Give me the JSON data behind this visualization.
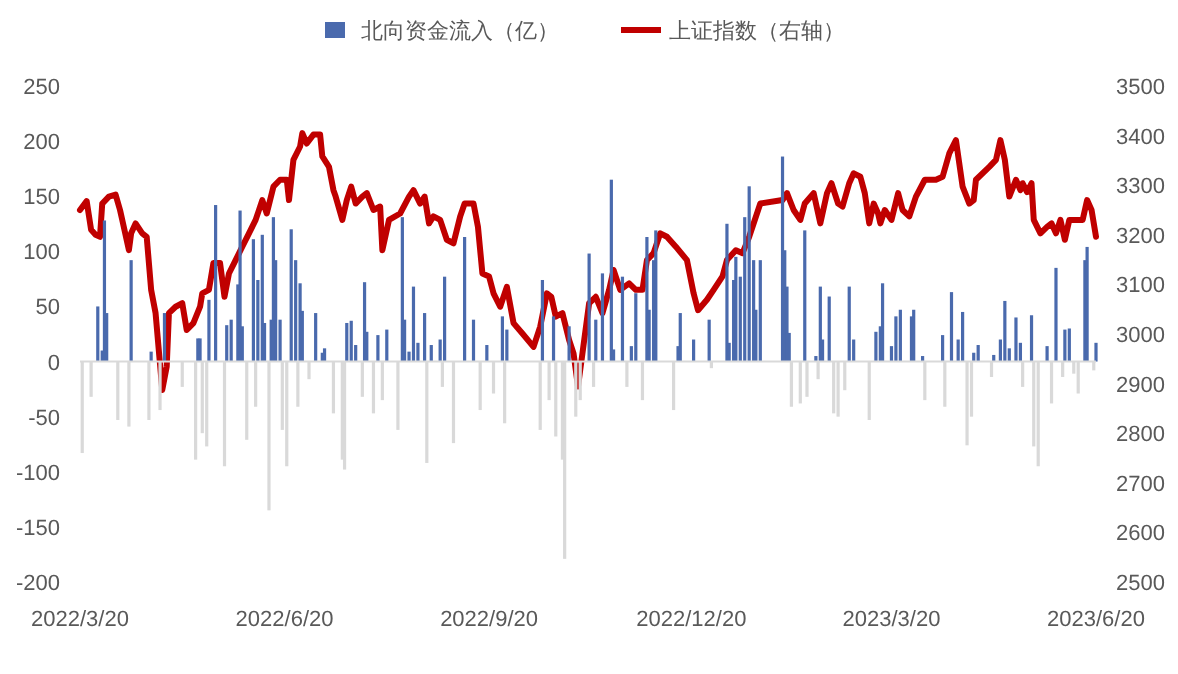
{
  "chart_data": {
    "type": "bar",
    "legend": "top",
    "xlim": [
      "2022-03-20",
      "2023-06-20"
    ],
    "xticks": [
      {
        "value": "2022-03-20",
        "label": "2022/3/20"
      },
      {
        "value": "2022-06-20",
        "label": "2022/6/20"
      },
      {
        "value": "2022-09-20",
        "label": "2022/9/20"
      },
      {
        "value": "2022-12-20",
        "label": "2022/12/20"
      },
      {
        "value": "2023-03-20",
        "label": "2023/3/20"
      },
      {
        "value": "2023-06-20",
        "label": "2023/6/20"
      }
    ],
    "ylim": [
      -200,
      250
    ],
    "yticks": [
      -200,
      -150,
      -100,
      -50,
      0,
      50,
      100,
      150,
      200,
      250
    ],
    "y2lim": [
      2500,
      3500
    ],
    "y2ticks": [
      2500,
      2600,
      2700,
      2800,
      2900,
      3000,
      3100,
      3200,
      3300,
      3400,
      3500
    ],
    "series": [
      {
        "name": "北向资金流入（亿）",
        "type": "bar",
        "color": "#4a6aad",
        "x": [
          "2022-03-21",
          "2022-03-25",
          "2022-03-28",
          "2022-03-30",
          "2022-03-31",
          "2022-04-01",
          "2022-04-06",
          "2022-04-11",
          "2022-04-12",
          "2022-04-20",
          "2022-04-21",
          "2022-04-25",
          "2022-04-27",
          "2022-05-05",
          "2022-05-11",
          "2022-05-12",
          "2022-05-13",
          "2022-05-14",
          "2022-05-16",
          "2022-05-17",
          "2022-05-20",
          "2022-05-24",
          "2022-05-25",
          "2022-05-27",
          "2022-05-30",
          "2022-05-31",
          "2022-06-01",
          "2022-06-03",
          "2022-06-06",
          "2022-06-07",
          "2022-06-08",
          "2022-06-10",
          "2022-06-11",
          "2022-06-13",
          "2022-06-14",
          "2022-06-15",
          "2022-06-16",
          "2022-06-18",
          "2022-06-19",
          "2022-06-21",
          "2022-06-23",
          "2022-06-25",
          "2022-06-26",
          "2022-06-27",
          "2022-06-28",
          "2022-07-01",
          "2022-07-04",
          "2022-07-07",
          "2022-07-08",
          "2022-07-12",
          "2022-07-16",
          "2022-07-17",
          "2022-07-18",
          "2022-07-20",
          "2022-07-22",
          "2022-07-25",
          "2022-07-26",
          "2022-07-27",
          "2022-07-30",
          "2022-08-01",
          "2022-08-03",
          "2022-08-05",
          "2022-08-10",
          "2022-08-12",
          "2022-08-13",
          "2022-08-15",
          "2022-08-17",
          "2022-08-19",
          "2022-08-22",
          "2022-08-23",
          "2022-08-25",
          "2022-08-29",
          "2022-08-30",
          "2022-08-31",
          "2022-09-04",
          "2022-09-09",
          "2022-09-13",
          "2022-09-16",
          "2022-09-19",
          "2022-09-22",
          "2022-09-26",
          "2022-09-27",
          "2022-09-28",
          "2022-10-13",
          "2022-10-14",
          "2022-10-17",
          "2022-10-19",
          "2022-10-20",
          "2022-10-23",
          "2022-10-24",
          "2022-10-26",
          "2022-10-29",
          "2022-10-31",
          "2022-11-04",
          "2022-11-06",
          "2022-11-07",
          "2022-11-10",
          "2022-11-14",
          "2022-11-15",
          "2022-11-19",
          "2022-11-21",
          "2022-11-23",
          "2022-11-25",
          "2022-11-28",
          "2022-11-30",
          "2022-12-01",
          "2022-12-03",
          "2022-12-04",
          "2022-12-12",
          "2022-12-14",
          "2022-12-15",
          "2022-12-21",
          "2022-12-28",
          "2022-12-29",
          "2023-01-05",
          "2023-01-06",
          "2023-01-08",
          "2023-01-09",
          "2023-01-11",
          "2023-01-13",
          "2023-01-15",
          "2023-01-17",
          "2023-01-18",
          "2023-01-20",
          "2023-01-30",
          "2023-01-31",
          "2023-02-01",
          "2023-02-02",
          "2023-02-03",
          "2023-02-07",
          "2023-02-09",
          "2023-02-10",
          "2023-02-14",
          "2023-02-15",
          "2023-02-16",
          "2023-02-17",
          "2023-02-20",
          "2023-02-22",
          "2023-02-24",
          "2023-02-27",
          "2023-03-01",
          "2023-03-03",
          "2023-03-10",
          "2023-03-13",
          "2023-03-15",
          "2023-03-16",
          "2023-03-20",
          "2023-03-22",
          "2023-03-24",
          "2023-03-29",
          "2023-03-30",
          "2023-04-03",
          "2023-04-04",
          "2023-04-12",
          "2023-04-13",
          "2023-04-16",
          "2023-04-19",
          "2023-04-21",
          "2023-04-23",
          "2023-04-25",
          "2023-04-26",
          "2023-04-28",
          "2023-05-04",
          "2023-05-05",
          "2023-05-08",
          "2023-05-10",
          "2023-05-12",
          "2023-05-15",
          "2023-05-17",
          "2023-05-18",
          "2023-05-22",
          "2023-05-23",
          "2023-05-25",
          "2023-05-29",
          "2023-05-31",
          "2023-06-02",
          "2023-06-05",
          "2023-06-06",
          "2023-06-08",
          "2023-06-10",
          "2023-06-12",
          "2023-06-15",
          "2023-06-16",
          "2023-06-19",
          "2023-06-20"
        ],
        "values": [
          -83,
          -32,
          50,
          10,
          128,
          44,
          -53,
          -59,
          92,
          -53,
          9,
          -44,
          44,
          -23,
          -89,
          21,
          21,
          -65,
          -77,
          56,
          142,
          -95,
          33,
          38,
          70,
          137,
          32,
          -71,
          111,
          -41,
          74,
          115,
          35,
          -135,
          38,
          131,
          92,
          38,
          -62,
          -95,
          120,
          92,
          -41,
          71,
          46,
          -16,
          44,
          8,
          12,
          -47,
          -89,
          -98,
          35,
          37,
          15,
          -32,
          72,
          27,
          -47,
          24,
          -35,
          29,
          -62,
          131,
          38,
          9,
          68,
          17,
          44,
          -92,
          15,
          20,
          -23,
          77,
          -74,
          113,
          38,
          -44,
          15,
          -29,
          41,
          -56,
          29,
          -62,
          74,
          -35,
          41,
          -68,
          -89,
          -179,
          32,
          -50,
          -35,
          98,
          -23,
          38,
          80,
          165,
          11,
          77,
          -23,
          14,
          62,
          -35,
          113,
          47,
          92,
          119,
          -44,
          14,
          44,
          20,
          38,
          -6,
          125,
          17,
          74,
          95,
          77,
          131,
          159,
          92,
          47,
          92,
          186,
          101,
          68,
          26,
          -41,
          -38,
          119,
          -32,
          5,
          -16,
          68,
          20,
          59,
          -47,
          -50,
          -26,
          68,
          20,
          -53,
          27,
          32,
          71,
          14,
          41,
          47,
          41,
          47,
          5,
          -35,
          24,
          -41,
          63,
          20,
          45,
          -76,
          -50,
          8,
          15,
          -14,
          6,
          20,
          55,
          12,
          40,
          17,
          -23,
          42,
          -77,
          -95,
          14,
          -38,
          85,
          -14,
          29,
          30,
          -11,
          -29,
          92,
          104,
          -8,
          17
        ],
        "colors": [
          "#d9d9d9",
          "#d9d9d9",
          "#4a6aad",
          "#4a6aad",
          "#4a6aad",
          "#4a6aad",
          "#d9d9d9",
          "#d9d9d9",
          "#4a6aad",
          "#d9d9d9",
          "#4a6aad",
          "#d9d9d9",
          "#4a6aad",
          "#d9d9d9",
          "#d9d9d9",
          "#4a6aad",
          "#4a6aad",
          "#d9d9d9",
          "#d9d9d9",
          "#4a6aad",
          "#4a6aad",
          "#d9d9d9",
          "#4a6aad",
          "#4a6aad",
          "#4a6aad",
          "#4a6aad",
          "#4a6aad",
          "#d9d9d9",
          "#4a6aad",
          "#d9d9d9",
          "#4a6aad",
          "#4a6aad",
          "#4a6aad",
          "#d9d9d9",
          "#4a6aad",
          "#4a6aad",
          "#4a6aad",
          "#4a6aad",
          "#d9d9d9",
          "#d9d9d9",
          "#4a6aad",
          "#4a6aad",
          "#d9d9d9",
          "#4a6aad",
          "#4a6aad",
          "#d9d9d9",
          "#4a6aad",
          "#4a6aad",
          "#4a6aad",
          "#d9d9d9",
          "#d9d9d9",
          "#d9d9d9",
          "#4a6aad",
          "#4a6aad",
          "#4a6aad",
          "#d9d9d9",
          "#4a6aad",
          "#4a6aad",
          "#d9d9d9",
          "#4a6aad",
          "#d9d9d9",
          "#4a6aad",
          "#d9d9d9",
          "#4a6aad",
          "#4a6aad",
          "#4a6aad",
          "#4a6aad",
          "#4a6aad",
          "#4a6aad",
          "#d9d9d9",
          "#4a6aad",
          "#4a6aad",
          "#d9d9d9",
          "#4a6aad",
          "#d9d9d9",
          "#4a6aad",
          "#4a6aad",
          "#d9d9d9",
          "#4a6aad",
          "#d9d9d9",
          "#4a6aad",
          "#d9d9d9",
          "#4a6aad",
          "#d9d9d9",
          "#4a6aad",
          "#d9d9d9",
          "#4a6aad",
          "#d9d9d9",
          "#d9d9d9",
          "#d9d9d9",
          "#4a6aad",
          "#d9d9d9",
          "#d9d9d9",
          "#4a6aad",
          "#d9d9d9",
          "#4a6aad",
          "#4a6aad",
          "#4a6aad",
          "#4a6aad",
          "#4a6aad",
          "#d9d9d9",
          "#4a6aad",
          "#4a6aad",
          "#d9d9d9",
          "#4a6aad",
          "#4a6aad",
          "#4a6aad",
          "#4a6aad",
          "#d9d9d9",
          "#4a6aad",
          "#4a6aad",
          "#4a6aad",
          "#4a6aad",
          "#d9d9d9",
          "#4a6aad",
          "#4a6aad",
          "#4a6aad",
          "#4a6aad",
          "#4a6aad",
          "#4a6aad",
          "#4a6aad",
          "#4a6aad",
          "#4a6aad",
          "#4a6aad",
          "#4a6aad",
          "#4a6aad",
          "#4a6aad",
          "#4a6aad",
          "#d9d9d9",
          "#d9d9d9",
          "#4a6aad",
          "#d9d9d9",
          "#4a6aad",
          "#d9d9d9",
          "#4a6aad",
          "#4a6aad",
          "#4a6aad",
          "#d9d9d9",
          "#d9d9d9",
          "#d9d9d9",
          "#4a6aad",
          "#4a6aad",
          "#d9d9d9",
          "#4a6aad",
          "#4a6aad",
          "#4a6aad",
          "#4a6aad",
          "#4a6aad",
          "#4a6aad",
          "#4a6aad",
          "#4a6aad",
          "#4a6aad",
          "#d9d9d9",
          "#4a6aad",
          "#d9d9d9",
          "#4a6aad",
          "#4a6aad",
          "#4a6aad",
          "#d9d9d9",
          "#d9d9d9",
          "#4a6aad",
          "#4a6aad",
          "#d9d9d9",
          "#4a6aad",
          "#4a6aad",
          "#4a6aad",
          "#4a6aad",
          "#4a6aad",
          "#4a6aad",
          "#d9d9d9",
          "#4a6aad",
          "#d9d9d9",
          "#d9d9d9",
          "#4a6aad",
          "#d9d9d9",
          "#4a6aad",
          "#d9d9d9",
          "#4a6aad",
          "#4a6aad",
          "#d9d9d9",
          "#d9d9d9",
          "#4a6aad",
          "#4a6aad",
          "#d9d9d9",
          "#4a6aad"
        ]
      },
      {
        "name": "上证指数（右轴）",
        "type": "line",
        "axis": "y2",
        "color": "#c00000",
        "x": [
          "2022-03-20",
          "2022-03-23",
          "2022-03-25",
          "2022-03-27",
          "2022-03-29",
          "2022-03-30",
          "2022-04-02",
          "2022-04-05",
          "2022-04-07",
          "2022-04-08",
          "2022-04-11",
          "2022-04-12",
          "2022-04-14",
          "2022-04-17",
          "2022-04-19",
          "2022-04-21",
          "2022-04-23",
          "2022-04-26",
          "2022-04-28",
          "2022-04-29",
          "2022-05-02",
          "2022-05-05",
          "2022-05-07",
          "2022-05-10",
          "2022-05-13",
          "2022-05-14",
          "2022-05-17",
          "2022-05-19",
          "2022-05-22",
          "2022-05-24",
          "2022-05-26",
          "2022-05-29",
          "2022-06-01",
          "2022-06-04",
          "2022-06-07",
          "2022-06-10",
          "2022-06-12",
          "2022-06-15",
          "2022-06-18",
          "2022-06-21",
          "2022-06-22",
          "2022-06-24",
          "2022-06-27",
          "2022-06-28",
          "2022-06-30",
          "2022-07-03",
          "2022-07-06",
          "2022-07-07",
          "2022-07-10",
          "2022-07-12",
          "2022-07-13",
          "2022-07-16",
          "2022-07-18",
          "2022-07-20",
          "2022-07-22",
          "2022-07-25",
          "2022-07-27",
          "2022-07-30",
          "2022-08-02",
          "2022-08-03",
          "2022-08-06",
          "2022-08-11",
          "2022-08-15",
          "2022-08-17",
          "2022-08-20",
          "2022-08-22",
          "2022-08-24",
          "2022-08-26",
          "2022-08-29",
          "2022-09-01",
          "2022-09-04",
          "2022-09-07",
          "2022-09-09",
          "2022-09-13",
          "2022-09-15",
          "2022-09-17",
          "2022-09-20",
          "2022-09-22",
          "2022-09-25",
          "2022-09-28",
          "2022-10-01",
          "2022-10-05",
          "2022-10-10",
          "2022-10-13",
          "2022-10-16",
          "2022-10-18",
          "2022-10-20",
          "2022-10-23",
          "2022-10-26",
          "2022-10-28",
          "2022-10-30",
          "2022-11-01",
          "2022-11-04",
          "2022-11-07",
          "2022-11-10",
          "2022-11-13",
          "2022-11-15",
          "2022-11-18",
          "2022-11-22",
          "2022-11-25",
          "2022-11-28",
          "2022-11-30",
          "2022-12-03",
          "2022-12-06",
          "2022-12-09",
          "2022-12-13",
          "2022-12-18",
          "2022-12-21",
          "2022-12-23",
          "2022-12-27",
          "2022-12-30",
          "2023-01-03",
          "2023-01-05",
          "2023-01-09",
          "2023-01-12",
          "2023-01-15",
          "2023-01-20",
          "2023-01-30",
          "2023-02-01",
          "2023-02-04",
          "2023-02-07",
          "2023-02-09",
          "2023-02-13",
          "2023-02-16",
          "2023-02-19",
          "2023-02-21",
          "2023-02-24",
          "2023-02-26",
          "2023-03-01",
          "2023-03-03",
          "2023-03-06",
          "2023-03-08",
          "2023-03-10",
          "2023-03-12",
          "2023-03-14",
          "2023-03-15",
          "2023-03-17",
          "2023-03-20",
          "2023-03-23",
          "2023-03-25",
          "2023-03-28",
          "2023-03-31",
          "2023-04-04",
          "2023-04-09",
          "2023-04-12",
          "2023-04-15",
          "2023-04-18",
          "2023-04-21",
          "2023-04-24",
          "2023-04-26",
          "2023-04-27",
          "2023-05-03",
          "2023-05-06",
          "2023-05-08",
          "2023-05-10",
          "2023-05-12",
          "2023-05-15",
          "2023-05-17",
          "2023-05-18",
          "2023-05-20",
          "2023-05-22",
          "2023-05-23",
          "2023-05-26",
          "2023-05-29",
          "2023-05-31",
          "2023-06-02",
          "2023-06-04",
          "2023-06-06",
          "2023-06-08",
          "2023-06-14",
          "2023-06-16",
          "2023-06-18",
          "2023-06-20"
        ],
        "values": [
          3250,
          3268,
          3210,
          3200,
          3196,
          3263,
          3277,
          3281,
          3250,
          3230,
          3169,
          3203,
          3223,
          3203,
          3196,
          3089,
          3042,
          2887,
          2934,
          3042,
          3055,
          3062,
          3008,
          3022,
          3055,
          3082,
          3089,
          3143,
          3143,
          3075,
          3122,
          3149,
          3176,
          3203,
          3230,
          3270,
          3243,
          3297,
          3311,
          3311,
          3270,
          3351,
          3378,
          3405,
          3384,
          3402,
          3402,
          3358,
          3337,
          3290,
          3277,
          3230,
          3270,
          3297,
          3263,
          3277,
          3284,
          3250,
          3257,
          3169,
          3230,
          3243,
          3277,
          3290,
          3263,
          3277,
          3223,
          3237,
          3230,
          3190,
          3183,
          3237,
          3263,
          3263,
          3216,
          3122,
          3116,
          3082,
          3055,
          3095,
          3022,
          3001,
          2974,
          3015,
          3082,
          3075,
          3035,
          3042,
          2988,
          2961,
          2894,
          2961,
          3062,
          3075,
          3042,
          3089,
          3129,
          3089,
          3102,
          3089,
          3089,
          3149,
          3163,
          3203,
          3196,
          3176,
          3149,
          3082,
          3048,
          3069,
          3089,
          3116,
          3149,
          3169,
          3163,
          3196,
          3263,
          3270,
          3284,
          3250,
          3230,
          3263,
          3284,
          3223,
          3284,
          3304,
          3263,
          3257,
          3304,
          3324,
          3317,
          3284,
          3223,
          3263,
          3243,
          3223,
          3250,
          3230,
          3284,
          3250,
          3237,
          3277,
          3311,
          3311,
          3317,
          3364,
          3391,
          3297,
          3263,
          3270,
          3311,
          3337,
          3351,
          3391,
          3351,
          3277,
          3311,
          3290,
          3304,
          3286,
          3304,
          3230,
          3203,
          3216,
          3223,
          3203,
          3230,
          3190,
          3230,
          3230,
          3270,
          3250,
          3196
        ]
      }
    ]
  }
}
